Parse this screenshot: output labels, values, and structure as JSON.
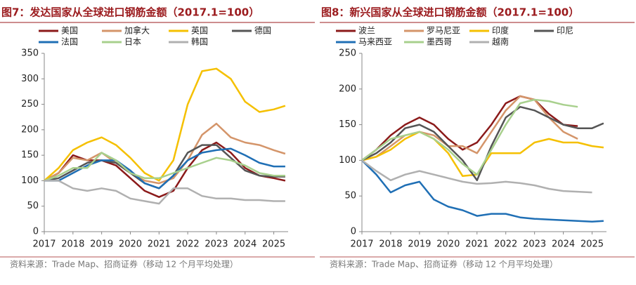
{
  "chart_data": [
    {
      "type": "line",
      "title": "图7：发达国家从全球进口钢筋金额（2017.1=100）",
      "source": "资料来源：Trade Map、招商证券（移动 12 个月平均处理）",
      "x": [
        2017,
        2017.5,
        2018,
        2018.5,
        2019,
        2019.5,
        2020,
        2020.5,
        2021,
        2021.5,
        2022,
        2022.5,
        2023,
        2023.5,
        2024,
        2024.5,
        2025,
        2025.4
      ],
      "xlim": [
        2017,
        2025.5
      ],
      "xticks": [
        2017,
        2018,
        2019,
        2020,
        2021,
        2022,
        2023,
        2024,
        2025
      ],
      "ylim": [
        0,
        350
      ],
      "yticks": [
        0,
        50,
        100,
        150,
        200,
        250,
        300,
        350
      ],
      "series": [
        {
          "name": "美国",
          "color": "#8b1a1a",
          "values": [
            100,
            115,
            150,
            140,
            140,
            130,
            105,
            80,
            68,
            80,
            125,
            160,
            175,
            155,
            125,
            110,
            105,
            100
          ]
        },
        {
          "name": "加拿大",
          "color": "#d4956a",
          "values": [
            100,
            115,
            145,
            140,
            155,
            135,
            115,
            100,
            95,
            105,
            140,
            190,
            212,
            185,
            175,
            170,
            160,
            153
          ]
        },
        {
          "name": "英国",
          "color": "#f5c000",
          "values": [
            100,
            125,
            160,
            175,
            185,
            170,
            145,
            115,
            100,
            140,
            250,
            315,
            320,
            300,
            255,
            235,
            240,
            247
          ]
        },
        {
          "name": "德国",
          "color": "#555555",
          "values": [
            100,
            105,
            120,
            135,
            140,
            135,
            115,
            95,
            85,
            110,
            155,
            170,
            170,
            145,
            120,
            110,
            108,
            108
          ]
        },
        {
          "name": "法国",
          "color": "#1f6fb5",
          "values": [
            100,
            100,
            115,
            130,
            140,
            140,
            120,
            95,
            85,
            110,
            140,
            155,
            160,
            163,
            150,
            135,
            128,
            128
          ]
        },
        {
          "name": "日本",
          "color": "#a8d08d",
          "values": [
            100,
            110,
            125,
            125,
            155,
            140,
            115,
            105,
            105,
            115,
            125,
            135,
            145,
            140,
            130,
            115,
            110,
            110
          ]
        },
        {
          "name": "韩国",
          "color": "#b0b0b0",
          "values": [
            100,
            100,
            85,
            80,
            85,
            80,
            65,
            60,
            55,
            85,
            85,
            70,
            65,
            65,
            62,
            62,
            60,
            60
          ]
        }
      ]
    },
    {
      "type": "line",
      "title": "图8：新兴国家从全球进口钢筋金额（2017.1=100）",
      "source": "资料来源：Trade Map、招商证券（移动 12 个月平均处理）",
      "x": [
        2017,
        2017.5,
        2018,
        2018.5,
        2019,
        2019.5,
        2020,
        2020.5,
        2021,
        2021.5,
        2022,
        2022.5,
        2023,
        2023.5,
        2024,
        2024.5,
        2025,
        2025.4
      ],
      "xlim": [
        2017,
        2025.5
      ],
      "xticks": [
        2017,
        2018,
        2019,
        2020,
        2021,
        2022,
        2023,
        2024,
        2025
      ],
      "ylim": [
        0,
        250
      ],
      "yticks": [
        0,
        50,
        100,
        150,
        200,
        250
      ],
      "series": [
        {
          "name": "波兰",
          "color": "#8b1a1a",
          "values": [
            100,
            115,
            135,
            150,
            160,
            150,
            130,
            115,
            125,
            150,
            180,
            190,
            185,
            165,
            150,
            148,
            null,
            null
          ]
        },
        {
          "name": "罗马尼亚",
          "color": "#d4956a",
          "values": [
            100,
            105,
            120,
            135,
            140,
            135,
            120,
            120,
            110,
            140,
            170,
            190,
            185,
            160,
            140,
            130,
            null,
            null
          ]
        },
        {
          "name": "印度",
          "color": "#f5c000",
          "values": [
            100,
            105,
            115,
            130,
            140,
            130,
            110,
            78,
            80,
            110,
            110,
            110,
            125,
            130,
            125,
            125,
            120,
            118
          ]
        },
        {
          "name": "印尼",
          "color": "#555555",
          "values": [
            100,
            110,
            125,
            145,
            150,
            140,
            120,
            100,
            72,
            120,
            160,
            175,
            170,
            160,
            150,
            145,
            145,
            152
          ]
        },
        {
          "name": "马来西亚",
          "color": "#1f6fb5",
          "values": [
            100,
            80,
            55,
            65,
            70,
            45,
            35,
            30,
            22,
            25,
            25,
            20,
            18,
            17,
            16,
            15,
            14,
            15
          ]
        },
        {
          "name": "墨西哥",
          "color": "#a8d08d",
          "values": [
            100,
            115,
            130,
            135,
            140,
            130,
            115,
            95,
            80,
            115,
            150,
            180,
            185,
            183,
            178,
            175,
            null,
            null
          ]
        },
        {
          "name": "越南",
          "color": "#b0b0b0",
          "values": [
            100,
            85,
            72,
            80,
            85,
            80,
            75,
            70,
            67,
            68,
            70,
            68,
            65,
            60,
            57,
            56,
            55,
            null
          ]
        }
      ]
    }
  ]
}
